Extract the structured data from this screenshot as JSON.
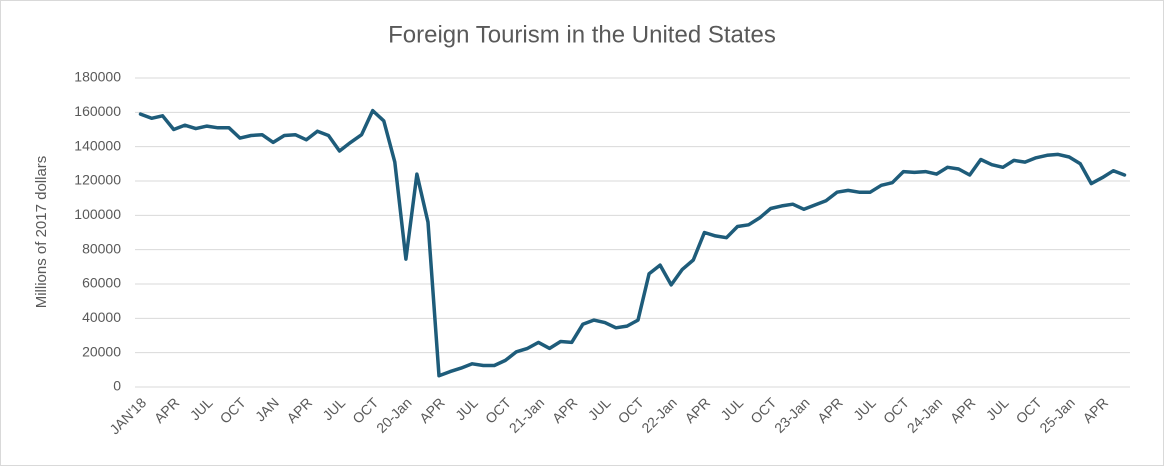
{
  "chart_data": {
    "type": "line",
    "title": "Foreign Tourism in the United States",
    "y_label": "Millions of 2017 dollars",
    "categories": [
      "JAN'18",
      null,
      null,
      "APR",
      null,
      null,
      "JUL",
      null,
      null,
      "OCT",
      null,
      null,
      "JAN",
      null,
      null,
      "APR",
      null,
      null,
      "JUL",
      null,
      null,
      "OCT",
      null,
      null,
      "20-Jan",
      null,
      null,
      "APR",
      null,
      null,
      "JUL",
      null,
      null,
      "OCT",
      null,
      null,
      "21-Jan",
      null,
      null,
      "APR",
      null,
      null,
      "JUL",
      null,
      null,
      "OCT",
      null,
      null,
      "22-Jan",
      null,
      null,
      "APR",
      null,
      null,
      "JUL",
      null,
      null,
      "OCT",
      null,
      null,
      "23-Jan",
      null,
      null,
      "APR",
      null,
      null,
      "JUL",
      null,
      null,
      "OCT",
      null,
      null,
      "24-Jan",
      null,
      null,
      "APR",
      null,
      null,
      "JUL",
      null,
      null,
      "OCT",
      null,
      null,
      "25-Jan",
      null,
      null,
      "APR",
      null,
      null
    ],
    "values": [
      159000,
      156500,
      158000,
      150000,
      152500,
      150500,
      152000,
      151000,
      151000,
      145000,
      146500,
      147000,
      142500,
      146500,
      147000,
      144000,
      149000,
      146500,
      137500,
      142500,
      147000,
      161000,
      155000,
      131000,
      74500,
      124000,
      96000,
      6500,
      9000,
      11000,
      13500,
      12500,
      12500,
      15500,
      20500,
      22500,
      26000,
      22500,
      26500,
      26000,
      36500,
      39000,
      37500,
      34500,
      35500,
      39000,
      66000,
      71000,
      59500,
      68500,
      74000,
      90000,
      88000,
      87000,
      93500,
      94500,
      98500,
      104000,
      105500,
      106500,
      103500,
      106000,
      108500,
      113500,
      114500,
      113500,
      113500,
      117500,
      119000,
      125500,
      125000,
      125500,
      124000,
      128000,
      127000,
      123500,
      132500,
      129500,
      128000,
      132000,
      131000,
      133500,
      135000,
      135500,
      134000,
      130000,
      118500,
      122000,
      126000,
      123500
    ],
    "color": "#1e5c7a",
    "ylim": [
      0,
      180000
    ],
    "yticks": [
      0,
      20000,
      40000,
      60000,
      80000,
      100000,
      120000,
      140000,
      160000,
      180000
    ],
    "grid": true
  }
}
